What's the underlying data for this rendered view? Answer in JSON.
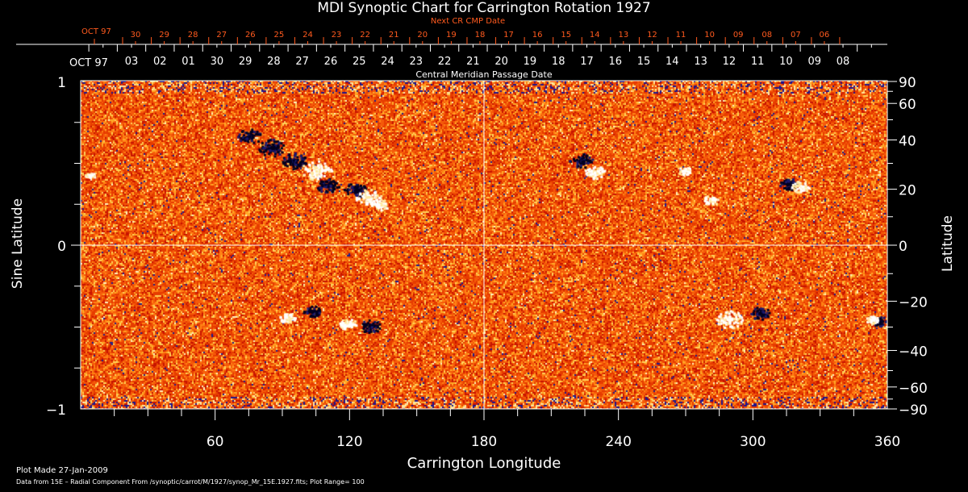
{
  "chart_data": {
    "type": "heatmap",
    "title": "MDI Synoptic Chart for Carrington Rotation 1927",
    "xlabel": "Carrington Longitude",
    "ylabel_left": "Sine Latitude",
    "ylabel_right": "Latitude",
    "xlim": [
      0,
      360
    ],
    "ylim": [
      -1,
      1
    ],
    "x_ticks": [
      "60",
      "120",
      "180",
      "240",
      "300",
      "360"
    ],
    "y_ticks_left": [
      "1",
      "0",
      "−1"
    ],
    "y_ticks_right": [
      "90",
      "60",
      "40",
      "20",
      "0",
      "−20",
      "−40",
      "−60",
      "−90"
    ],
    "y_ticks_right_values": [
      90,
      60,
      40,
      20,
      0,
      -20,
      -40,
      -60,
      -90
    ],
    "top_axis": {
      "label": "Central Meridian Passage Date",
      "month_label": "OCT 97",
      "dates": [
        "03",
        "02",
        "01",
        "30",
        "29",
        "28",
        "27",
        "26",
        "25",
        "24",
        "23",
        "22",
        "21",
        "20",
        "19",
        "18",
        "17",
        "16",
        "15",
        "14",
        "13",
        "12",
        "11",
        "10",
        "09",
        "08"
      ]
    },
    "next_axis": {
      "label": "Next CR CMP Date",
      "month_label": "OCT 97",
      "dates": [
        "30",
        "29",
        "28",
        "27",
        "26",
        "25",
        "24",
        "23",
        "22",
        "21",
        "20",
        "19",
        "18",
        "17",
        "16",
        "15",
        "14",
        "13",
        "12",
        "11",
        "10",
        "09",
        "08",
        "07",
        "06"
      ]
    },
    "plot_range": 100,
    "colors": {
      "background": "#e8440c",
      "positive": "#ffffff",
      "negative": "#0a0a50",
      "accent": "#ff5a1e"
    }
  },
  "footer": {
    "plot_made": "Plot Made 27-Jan-2009",
    "data_note": "Data from 15E – Radial Component From /synoptic/carrot/M/1927/synop_Mr_15E.1927.fits; Plot Range=  100"
  }
}
